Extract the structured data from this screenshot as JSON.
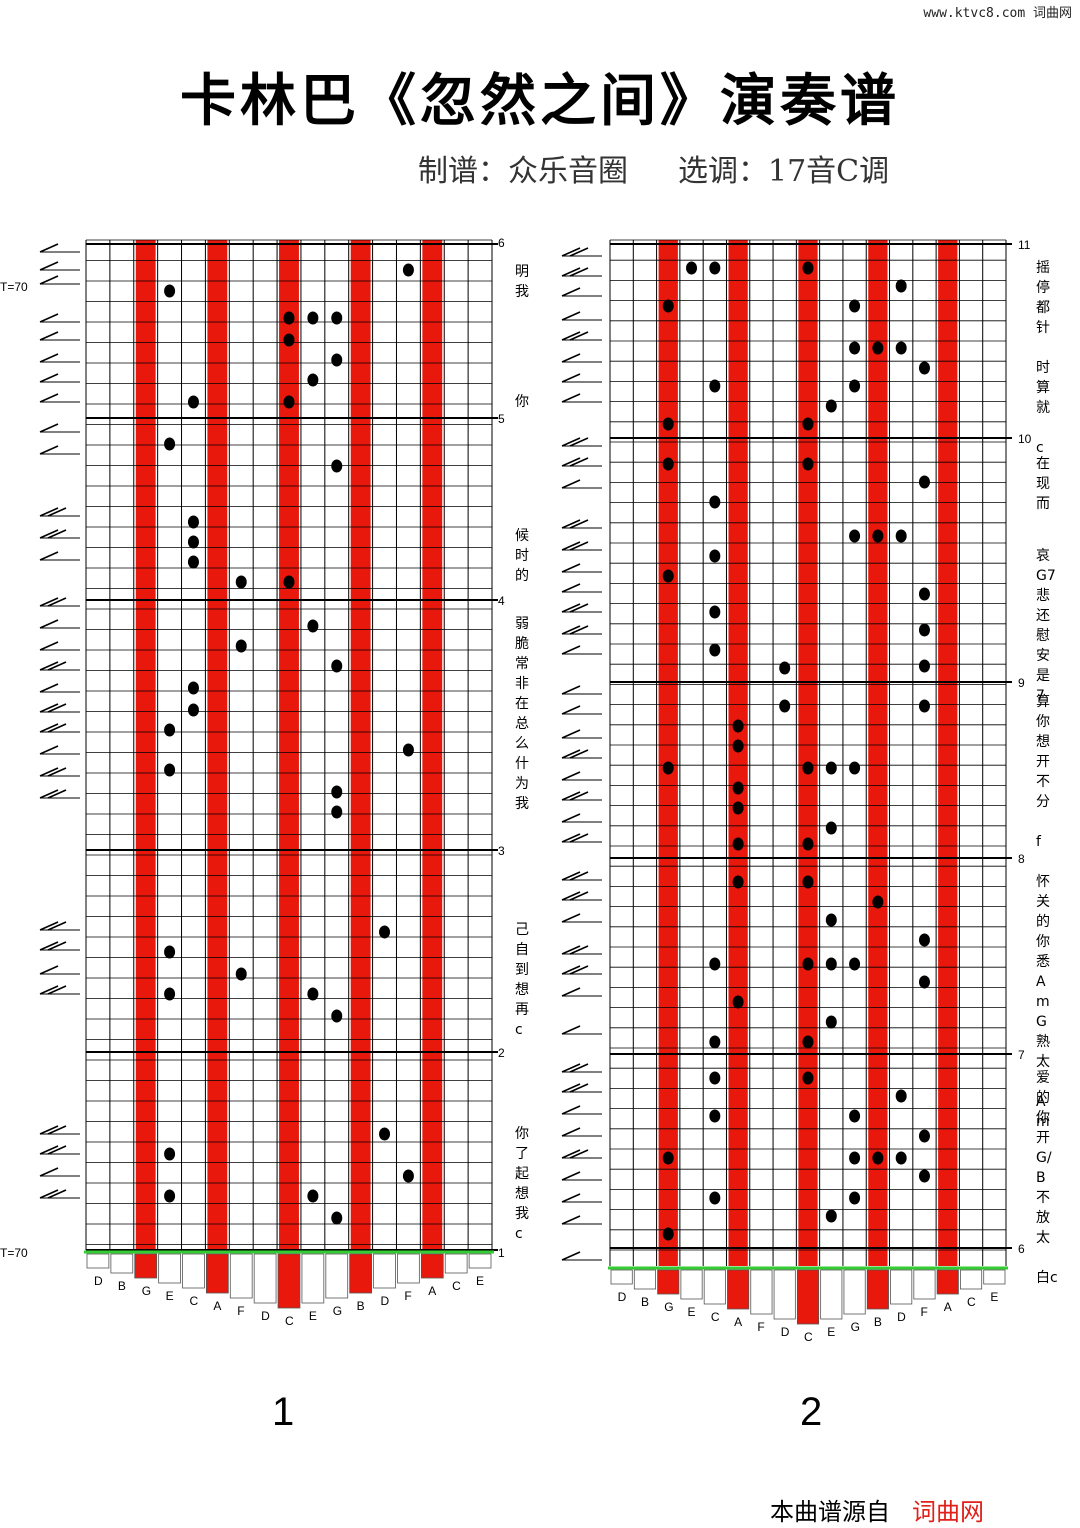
{
  "header": {
    "watermark": "www.ktvc8.com 词曲网",
    "title": "卡林巴《忽然之间》演奏谱",
    "arranger": "制谱：众乐音圈",
    "key": "选调：17音C调"
  },
  "tine_labels": [
    "D",
    "B",
    "G",
    "E",
    "C",
    "A",
    "F",
    "D",
    "C",
    "E",
    "G",
    "B",
    "D",
    "F",
    "A",
    "C",
    "E"
  ],
  "panels": [
    {
      "page_number": "1",
      "tempo_top": "T=70",
      "tempo_bottom": "T=70",
      "measure_numbers": [
        "6",
        "5",
        "4",
        "3",
        "2",
        "1"
      ],
      "lyrics": [
        "明\n我",
        "你",
        "候\n时\n的",
        "弱\n脆\n常\n非\n在\n总\n么\n什\n为\n我",
        "己\n自\n到\n想\n再\nc",
        "你\n了\n起\n想\n我\nc"
      ]
    },
    {
      "page_number": "2",
      "measure_numbers": [
        "11",
        "10",
        "9",
        "8",
        "7",
        "6"
      ],
      "lyrics": [
        "摇\n停\n都\n针\n\n时\n算\n就\n\nc",
        "在\n现\n而",
        "哀G7\n悲\n还\n慰\n安\n是\n7",
        "算\n你\n想\n开\n不\n分\n\nf",
        "怀\n关\n的\n你\n悉AmG\n熟\n太\n\nAm",
        "爱\n的\n你\n开G/B\n不\n放\n太\n\n白c"
      ]
    }
  ],
  "footer": {
    "source": "本曲谱源自",
    "site": "词曲网"
  },
  "colors": {
    "tine_highlight": "#e8180c",
    "baseline": "#33cc33"
  }
}
